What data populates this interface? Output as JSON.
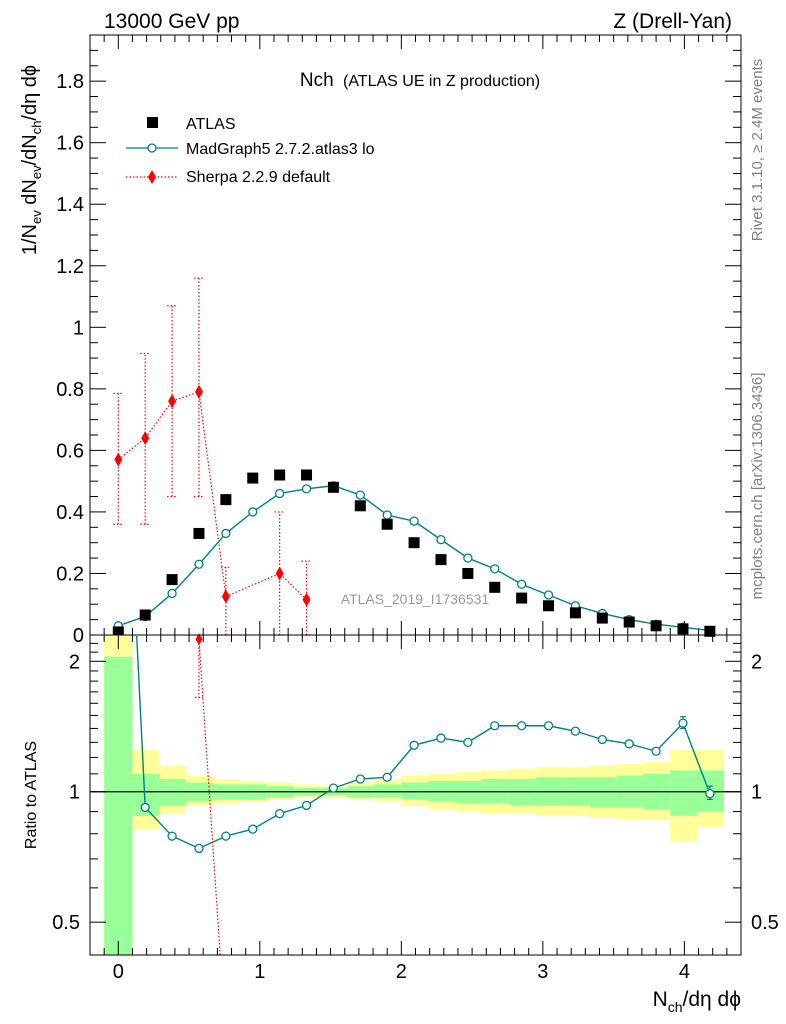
{
  "header": {
    "energy_label": "13000 GeV pp",
    "process_label": "Z (Drell-Yan)"
  },
  "side_labels": {
    "rivet": "Rivet 3.1.10, ≥ 2.4M events",
    "mcplots": "mcplots.cern.ch [arXiv:1306.3436]"
  },
  "colors": {
    "data": "#000000",
    "madgraph": "#008080",
    "sherpa": "#ff0000",
    "band_inner": "#99ff99",
    "band_outer": "#ffff99",
    "watermark": "#999999"
  },
  "chart_data": [
    {
      "type": "scatter",
      "panel": "main",
      "title_main": "Nch",
      "title_sub": "(ATLAS UE in Z production)",
      "watermark": "ATLAS_2019_I1736531",
      "xlabel": "N_ch/dη dϕ",
      "ylabel": "1/N_ev dN_ev/dN_ch/dη dϕ",
      "xlim": [
        -0.2,
        4.4
      ],
      "ylim": [
        0,
        1.95
      ],
      "x_ticks": [
        "0",
        "1",
        "2",
        "3",
        "4"
      ],
      "y_ticks": [
        "0",
        "0.2",
        "0.4",
        "0.6",
        "0.8",
        "1",
        "1.2",
        "1.4",
        "1.6",
        "1.8"
      ],
      "series": [
        {
          "name": "ATLAS",
          "style": "markers",
          "x": [
            0.0,
            0.19,
            0.38,
            0.57,
            0.76,
            0.95,
            1.14,
            1.33,
            1.52,
            1.71,
            1.9,
            2.09,
            2.28,
            2.47,
            2.66,
            2.85,
            3.04,
            3.23,
            3.42,
            3.61,
            3.8,
            3.99,
            4.18
          ],
          "y": [
            0.01,
            0.065,
            0.18,
            0.33,
            0.44,
            0.51,
            0.52,
            0.52,
            0.48,
            0.42,
            0.36,
            0.3,
            0.245,
            0.2,
            0.155,
            0.12,
            0.095,
            0.072,
            0.055,
            0.042,
            0.03,
            0.02,
            0.012
          ]
        },
        {
          "name": "MadGraph5 2.7.2.atlas3 lo",
          "style": "line-circles",
          "x": [
            0.0,
            0.19,
            0.38,
            0.57,
            0.76,
            0.95,
            1.14,
            1.33,
            1.52,
            1.71,
            1.9,
            2.09,
            2.28,
            2.47,
            2.66,
            2.85,
            3.04,
            3.23,
            3.42,
            3.61,
            3.8,
            3.99,
            4.18
          ],
          "y": [
            0.03,
            0.06,
            0.135,
            0.23,
            0.33,
            0.4,
            0.46,
            0.475,
            0.485,
            0.455,
            0.39,
            0.37,
            0.31,
            0.25,
            0.215,
            0.165,
            0.13,
            0.095,
            0.07,
            0.05,
            0.035,
            0.025,
            0.015
          ]
        },
        {
          "name": "Sherpa 2.2.9 default",
          "style": "dotted-diamonds",
          "x": [
            0.0,
            0.19,
            0.38,
            0.57,
            0.76,
            1.14,
            1.33
          ],
          "y": [
            0.57,
            0.64,
            0.76,
            0.79,
            0.125,
            0.2,
            0.115
          ],
          "yerr_low": [
            0.36,
            0.36,
            0.45,
            0.45,
            0.0,
            0.0,
            0.0
          ],
          "yerr_high": [
            0.785,
            0.915,
            1.07,
            1.16,
            0.22,
            0.4,
            0.24
          ]
        }
      ]
    },
    {
      "type": "scatter",
      "panel": "ratio",
      "ylabel": "Ratio to ATLAS",
      "yscale": "log",
      "ylim": [
        0.42,
        2.3
      ],
      "y_ticks": [
        "0.5",
        "1",
        "2"
      ],
      "reference": 1,
      "band": {
        "x_edges": [
          -0.1,
          0.1,
          0.29,
          0.48,
          0.67,
          0.86,
          1.05,
          1.24,
          1.43,
          1.62,
          1.81,
          2.0,
          2.19,
          2.38,
          2.57,
          2.76,
          2.95,
          3.14,
          3.33,
          3.52,
          3.71,
          3.9,
          4.09,
          4.28
        ],
        "inner_low": [
          0.3,
          0.88,
          0.93,
          0.95,
          0.96,
          0.96,
          0.97,
          0.98,
          0.98,
          0.97,
          0.97,
          0.96,
          0.95,
          0.94,
          0.94,
          0.93,
          0.93,
          0.93,
          0.92,
          0.92,
          0.91,
          0.88,
          0.9
        ],
        "inner_high": [
          2.05,
          1.1,
          1.07,
          1.05,
          1.04,
          1.04,
          1.03,
          1.02,
          1.02,
          1.03,
          1.04,
          1.05,
          1.06,
          1.06,
          1.07,
          1.07,
          1.08,
          1.08,
          1.08,
          1.09,
          1.1,
          1.12,
          1.12
        ],
        "outer_low": [
          0.3,
          0.82,
          0.89,
          0.93,
          0.94,
          0.95,
          0.96,
          0.97,
          0.97,
          0.96,
          0.95,
          0.93,
          0.91,
          0.9,
          0.89,
          0.89,
          0.88,
          0.88,
          0.87,
          0.86,
          0.86,
          0.77,
          0.83
        ],
        "outer_high": [
          2.3,
          1.25,
          1.15,
          1.09,
          1.07,
          1.06,
          1.05,
          1.04,
          1.03,
          1.05,
          1.07,
          1.09,
          1.1,
          1.11,
          1.12,
          1.13,
          1.14,
          1.14,
          1.15,
          1.16,
          1.17,
          1.25,
          1.25
        ]
      },
      "series": [
        {
          "name": "MadGraph5 2.7.2.atlas3 lo",
          "x": [
            0.19,
            0.38,
            0.57,
            0.76,
            0.95,
            1.14,
            1.33,
            1.52,
            1.71,
            1.9,
            2.09,
            2.28,
            2.47,
            2.66,
            2.85,
            3.04,
            3.23,
            3.42,
            3.61,
            3.8,
            3.99,
            4.18
          ],
          "y": [
            0.92,
            0.79,
            0.74,
            0.79,
            0.82,
            0.89,
            0.93,
            1.02,
            1.07,
            1.08,
            1.28,
            1.33,
            1.3,
            1.42,
            1.42,
            1.42,
            1.38,
            1.32,
            1.29,
            1.24,
            1.44,
            0.99
          ],
          "from_x": 0.1,
          "from_y": 3.0
        },
        {
          "name": "Sherpa 2.2.9 default",
          "x": [
            0.57
          ],
          "y": [
            2.25
          ],
          "line_to_x": 0.72,
          "line_to_y": 0.42
        }
      ]
    }
  ],
  "legend": [
    {
      "label": "ATLAS",
      "marker": "square"
    },
    {
      "label": "MadGraph5 2.7.2.atlas3 lo",
      "marker": "open-circle-line"
    },
    {
      "label": "Sherpa 2.2.9 default",
      "marker": "diamond-dotted"
    }
  ]
}
